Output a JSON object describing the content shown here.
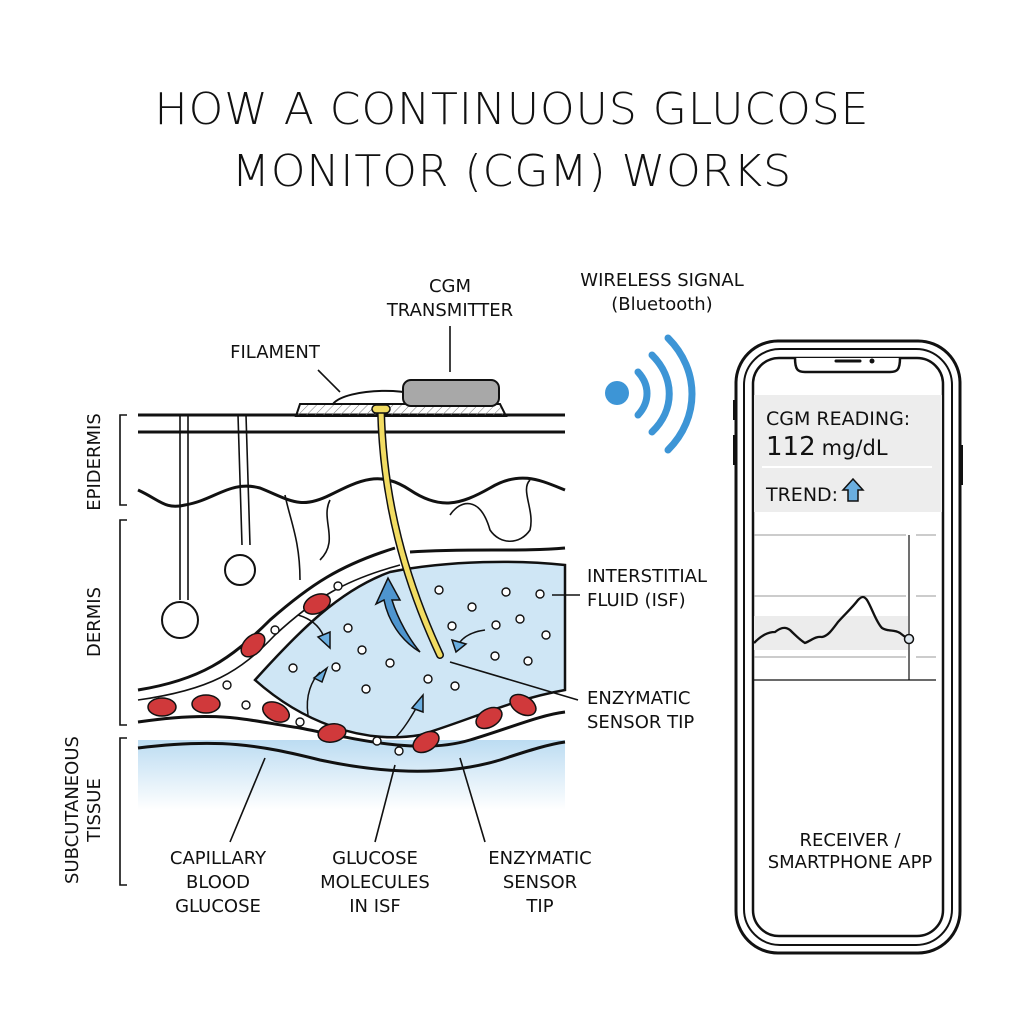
{
  "title": {
    "line1": "HOW A CONTINUOUS GLUCOSE",
    "line2": "MONITOR (CGM) WORKS"
  },
  "labels": {
    "transmitter": [
      "CGM",
      "TRANSMITTER"
    ],
    "filament": "FILAMENT",
    "wireless": [
      "WIRELESS SIGNAL",
      "(Bluetooth)"
    ],
    "isf": [
      "INTERSTITIAL",
      "FLUID (ISF)"
    ],
    "sensor_tip_right": [
      "ENZYMATIC",
      "SENSOR TIP"
    ],
    "layers": {
      "epidermis": "EPIDERMIS",
      "dermis": "DERMIS",
      "subcutaneous": [
        "SUBCUTANEOUS",
        "TISSUE"
      ]
    },
    "capillary": [
      "CAPILLARY",
      "BLOOD",
      "GLUCOSE"
    ],
    "glucose_isf": [
      "GLUCOSE",
      "MOLECULES",
      "IN ISF"
    ],
    "sensor_tip_bottom": [
      "ENZYMATIC",
      "SENSOR",
      "TIP"
    ],
    "receiver": [
      "RECEIVER /",
      "SMARTPHONE APP"
    ]
  },
  "phone": {
    "reading_label": "CGM READING:",
    "reading_value": "112",
    "reading_unit": "mg/dL",
    "trend_label": "TREND:",
    "trend_icon": "arrow-up-icon"
  },
  "colors": {
    "isf_blue": "#cfe6f5",
    "filament_yellow": "#f2dc62",
    "rbc_red": "#d0393b",
    "signal_blue": "#3d95d6",
    "transmitter_gray": "#a8a8a8"
  }
}
